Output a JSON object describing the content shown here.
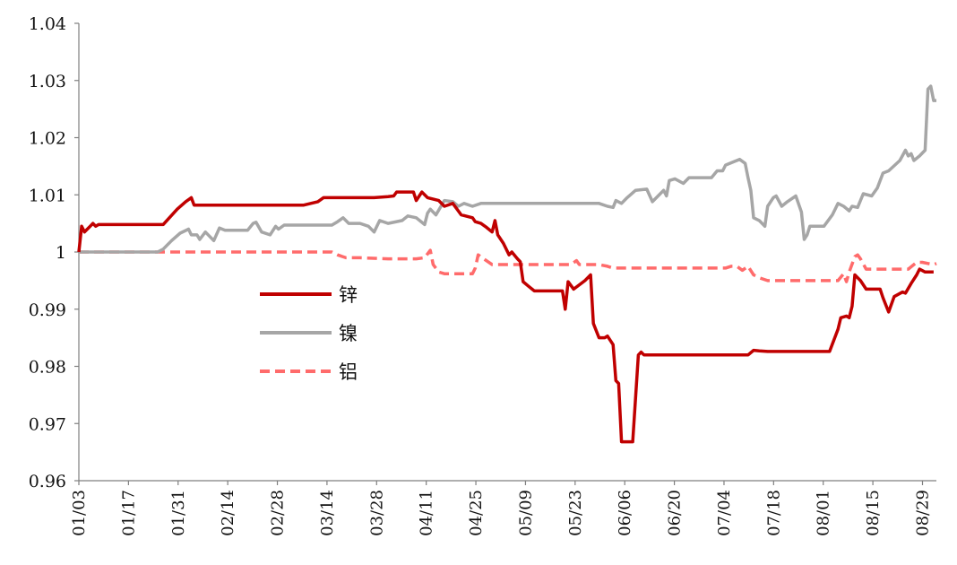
{
  "chart_data": {
    "type": "line",
    "title": "",
    "xlabel": "",
    "ylabel": "",
    "ylim": [
      0.96,
      1.04
    ],
    "y_ticks": [
      "0.96",
      "0.97",
      "0.98",
      "0.99",
      "1",
      "1.01",
      "1.02",
      "1.03",
      "1.04"
    ],
    "y_tick_values": [
      0.96,
      0.97,
      0.98,
      0.99,
      1.0,
      1.01,
      1.02,
      1.03,
      1.04
    ],
    "x_ticks": [
      "01/03",
      "01/17",
      "01/31",
      "02/14",
      "02/28",
      "03/14",
      "03/28",
      "04/11",
      "04/25",
      "05/09",
      "05/23",
      "06/06",
      "06/20",
      "07/04",
      "07/18",
      "08/01",
      "08/15",
      "08/29"
    ],
    "grid": false,
    "legend_position": "center-left",
    "series": [
      {
        "name": "锌",
        "color": "#c00000",
        "style": "solid",
        "points": [
          [
            0,
            1.0
          ],
          [
            1,
            1.0045
          ],
          [
            2,
            1.0035
          ],
          [
            4,
            1.0045
          ],
          [
            5,
            1.005
          ],
          [
            6,
            1.0045
          ],
          [
            7,
            1.0048
          ],
          [
            10,
            1.0048
          ],
          [
            15,
            1.0048
          ],
          [
            20,
            1.0048
          ],
          [
            25,
            1.0048
          ],
          [
            30,
            1.0048
          ],
          [
            35,
            1.0075
          ],
          [
            38,
            1.0088
          ],
          [
            40,
            1.0095
          ],
          [
            41,
            1.0082
          ],
          [
            45,
            1.0082
          ],
          [
            50,
            1.0082
          ],
          [
            60,
            1.0082
          ],
          [
            70,
            1.0082
          ],
          [
            80,
            1.0082
          ],
          [
            85,
            1.0088
          ],
          [
            87,
            1.0095
          ],
          [
            90,
            1.0095
          ],
          [
            95,
            1.0095
          ],
          [
            100,
            1.0095
          ],
          [
            105,
            1.0095
          ],
          [
            110,
            1.0097
          ],
          [
            112,
            1.0098
          ],
          [
            113,
            1.0105
          ],
          [
            117,
            1.0105
          ],
          [
            119,
            1.0105
          ],
          [
            120,
            1.009
          ],
          [
            122,
            1.0105
          ],
          [
            124,
            1.0095
          ],
          [
            128,
            1.009
          ],
          [
            130,
            1.008
          ],
          [
            133,
            1.0085
          ],
          [
            136,
            1.0065
          ],
          [
            140,
            1.006
          ],
          [
            141,
            1.0053
          ],
          [
            143,
            1.005
          ],
          [
            145,
            1.0043
          ],
          [
            147,
            1.0035
          ],
          [
            148,
            1.0055
          ],
          [
            149,
            1.003
          ],
          [
            151,
            1.0015
          ],
          [
            153,
            0.9995
          ],
          [
            154,
            1.0
          ],
          [
            156,
            0.9988
          ],
          [
            157,
            0.9983
          ],
          [
            158,
            0.9948
          ],
          [
            160,
            0.994
          ],
          [
            162,
            0.9932
          ],
          [
            165,
            0.9932
          ],
          [
            170,
            0.9932
          ],
          [
            172,
            0.9932
          ],
          [
            173,
            0.99
          ],
          [
            174,
            0.9948
          ],
          [
            176,
            0.9935
          ],
          [
            180,
            0.995
          ],
          [
            182,
            0.996
          ],
          [
            183,
            0.9875
          ],
          [
            185,
            0.985
          ],
          [
            187,
            0.985
          ],
          [
            188,
            0.9853
          ],
          [
            190,
            0.9838
          ],
          [
            191,
            0.9775
          ],
          [
            192,
            0.977
          ],
          [
            193,
            0.9668
          ],
          [
            195,
            0.9668
          ],
          [
            197,
            0.9668
          ],
          [
            199,
            0.982
          ],
          [
            200,
            0.9825
          ],
          [
            201,
            0.982
          ],
          [
            205,
            0.982
          ],
          [
            210,
            0.982
          ],
          [
            215,
            0.982
          ],
          [
            220,
            0.982
          ],
          [
            225,
            0.982
          ],
          [
            230,
            0.982
          ],
          [
            235,
            0.982
          ],
          [
            238,
            0.982
          ],
          [
            240,
            0.9828
          ],
          [
            242,
            0.9827
          ],
          [
            245,
            0.9826
          ],
          [
            250,
            0.9826
          ],
          [
            255,
            0.9826
          ],
          [
            260,
            0.9826
          ],
          [
            265,
            0.9826
          ],
          [
            267,
            0.9826
          ],
          [
            270,
            0.9865
          ],
          [
            271,
            0.9885
          ],
          [
            273,
            0.9888
          ],
          [
            274,
            0.9885
          ],
          [
            275,
            0.9905
          ],
          [
            276,
            0.996
          ],
          [
            278,
            0.995
          ],
          [
            280,
            0.9935
          ],
          [
            285,
            0.9935
          ],
          [
            286,
            0.992
          ],
          [
            288,
            0.9895
          ],
          [
            290,
            0.9922
          ],
          [
            293,
            0.993
          ],
          [
            294,
            0.9928
          ],
          [
            296,
            0.9945
          ],
          [
            298,
            0.996
          ],
          [
            299,
            0.997
          ],
          [
            301,
            0.9965
          ],
          [
            304,
            0.9965
          ]
        ]
      },
      {
        "name": "镍",
        "color": "#a6a6a6",
        "style": "solid",
        "points": [
          [
            0,
            1.0
          ],
          [
            10,
            1.0
          ],
          [
            20,
            1.0
          ],
          [
            28,
            1.0
          ],
          [
            30,
            1.0005
          ],
          [
            33,
            1.002
          ],
          [
            36,
            1.0033
          ],
          [
            39,
            1.004
          ],
          [
            40,
            1.003
          ],
          [
            42,
            1.003
          ],
          [
            43,
            1.0022
          ],
          [
            45,
            1.0035
          ],
          [
            48,
            1.002
          ],
          [
            50,
            1.0042
          ],
          [
            52,
            1.0038
          ],
          [
            55,
            1.0038
          ],
          [
            60,
            1.0038
          ],
          [
            62,
            1.005
          ],
          [
            63,
            1.0052
          ],
          [
            65,
            1.0035
          ],
          [
            68,
            1.003
          ],
          [
            70,
            1.0045
          ],
          [
            71,
            1.004
          ],
          [
            73,
            1.0047
          ],
          [
            80,
            1.0047
          ],
          [
            90,
            1.0047
          ],
          [
            92,
            1.0053
          ],
          [
            94,
            1.006
          ],
          [
            96,
            1.005
          ],
          [
            100,
            1.005
          ],
          [
            103,
            1.0045
          ],
          [
            105,
            1.0035
          ],
          [
            107,
            1.0055
          ],
          [
            110,
            1.005
          ],
          [
            115,
            1.0055
          ],
          [
            117,
            1.0063
          ],
          [
            120,
            1.006
          ],
          [
            123,
            1.0048
          ],
          [
            124,
            1.0068
          ],
          [
            125,
            1.0075
          ],
          [
            127,
            1.0065
          ],
          [
            130,
            1.009
          ],
          [
            133,
            1.0088
          ],
          [
            135,
            1.008
          ],
          [
            137,
            1.0085
          ],
          [
            140,
            1.008
          ],
          [
            143,
            1.0085
          ],
          [
            150,
            1.0085
          ],
          [
            160,
            1.0085
          ],
          [
            170,
            1.0085
          ],
          [
            180,
            1.0085
          ],
          [
            185,
            1.0085
          ],
          [
            188,
            1.008
          ],
          [
            190,
            1.0078
          ],
          [
            191,
            1.009
          ],
          [
            193,
            1.0085
          ],
          [
            195,
            1.0095
          ],
          [
            198,
            1.0108
          ],
          [
            202,
            1.011
          ],
          [
            204,
            1.0088
          ],
          [
            206,
            1.0098
          ],
          [
            208,
            1.0108
          ],
          [
            209,
            1.0098
          ],
          [
            210,
            1.0125
          ],
          [
            212,
            1.0128
          ],
          [
            215,
            1.012
          ],
          [
            217,
            1.013
          ],
          [
            220,
            1.013
          ],
          [
            225,
            1.013
          ],
          [
            227,
            1.0142
          ],
          [
            229,
            1.0142
          ],
          [
            230,
            1.0152
          ],
          [
            233,
            1.0158
          ],
          [
            235,
            1.0162
          ],
          [
            237,
            1.0155
          ],
          [
            238,
            1.013
          ],
          [
            239,
            1.0108
          ],
          [
            240,
            1.006
          ],
          [
            242,
            1.0055
          ],
          [
            244,
            1.0045
          ],
          [
            245,
            1.008
          ],
          [
            247,
            1.0095
          ],
          [
            248,
            1.0098
          ],
          [
            250,
            1.008
          ],
          [
            252,
            1.0088
          ],
          [
            255,
            1.0098
          ],
          [
            257,
            1.007
          ],
          [
            258,
            1.0022
          ],
          [
            259,
            1.003
          ],
          [
            260,
            1.0045
          ],
          [
            265,
            1.0045
          ],
          [
            268,
            1.0065
          ],
          [
            270,
            1.0085
          ],
          [
            272,
            1.008
          ],
          [
            274,
            1.0072
          ],
          [
            275,
            1.008
          ],
          [
            277,
            1.0078
          ],
          [
            279,
            1.0102
          ],
          [
            282,
            1.0098
          ],
          [
            284,
            1.0112
          ],
          [
            286,
            1.0138
          ],
          [
            288,
            1.0142
          ],
          [
            292,
            1.016
          ],
          [
            294,
            1.0178
          ],
          [
            295,
            1.0168
          ],
          [
            296,
            1.0172
          ],
          [
            297,
            1.016
          ],
          [
            299,
            1.0168
          ],
          [
            301,
            1.0178
          ],
          [
            302,
            1.0285
          ],
          [
            303,
            1.029
          ],
          [
            304,
            1.0265
          ],
          [
            305,
            1.0265
          ]
        ]
      },
      {
        "name": "铝",
        "color": "#ff6b6b",
        "style": "dashed",
        "points": [
          [
            0,
            1.0
          ],
          [
            20,
            1.0
          ],
          [
            40,
            1.0
          ],
          [
            60,
            1.0
          ],
          [
            80,
            1.0
          ],
          [
            90,
            1.0
          ],
          [
            92,
            0.9995
          ],
          [
            95,
            0.999
          ],
          [
            100,
            0.999
          ],
          [
            110,
            0.9988
          ],
          [
            120,
            0.9988
          ],
          [
            123,
            0.999
          ],
          [
            125,
            1.0003
          ],
          [
            126,
            0.9978
          ],
          [
            128,
            0.9965
          ],
          [
            130,
            0.9962
          ],
          [
            140,
            0.9962
          ],
          [
            141,
            0.9972
          ],
          [
            142,
            0.9995
          ],
          [
            144,
            0.9988
          ],
          [
            147,
            0.9978
          ],
          [
            150,
            0.9978
          ],
          [
            160,
            0.9978
          ],
          [
            170,
            0.9978
          ],
          [
            175,
            0.9978
          ],
          [
            177,
            0.9985
          ],
          [
            178,
            0.9978
          ],
          [
            185,
            0.9978
          ],
          [
            188,
            0.9975
          ],
          [
            190,
            0.9972
          ],
          [
            200,
            0.9972
          ],
          [
            210,
            0.9972
          ],
          [
            220,
            0.9972
          ],
          [
            230,
            0.9972
          ],
          [
            232,
            0.9975
          ],
          [
            234,
            0.9975
          ],
          [
            236,
            0.9968
          ],
          [
            238,
            0.9975
          ],
          [
            240,
            0.996
          ],
          [
            242,
            0.9955
          ],
          [
            245,
            0.995
          ],
          [
            250,
            0.995
          ],
          [
            260,
            0.995
          ],
          [
            270,
            0.995
          ],
          [
            272,
            0.9962
          ],
          [
            273,
            0.9948
          ],
          [
            274,
            0.9965
          ],
          [
            276,
            0.9992
          ],
          [
            277,
            0.9995
          ],
          [
            278,
            0.9988
          ],
          [
            280,
            0.997
          ],
          [
            285,
            0.997
          ],
          [
            290,
            0.997
          ],
          [
            295,
            0.997
          ],
          [
            298,
            0.9982
          ],
          [
            300,
            0.9982
          ],
          [
            302,
            0.998
          ],
          [
            304,
            0.9978
          ],
          [
            305,
            0.998
          ]
        ]
      }
    ]
  }
}
